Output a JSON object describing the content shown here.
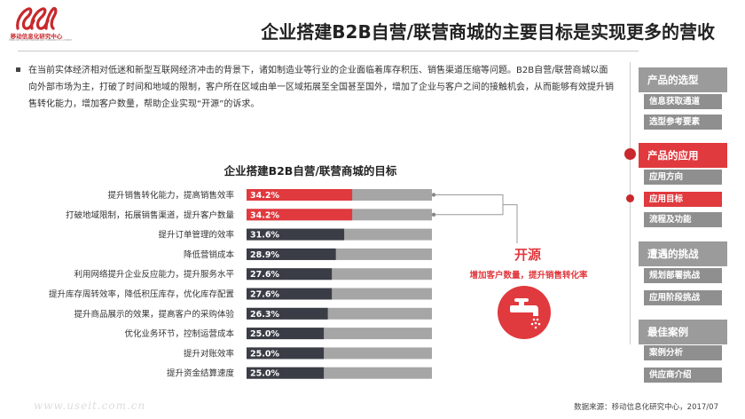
{
  "logo": {
    "cn": "移动信息化研究中心",
    "en": "Mobile Informatization Research Center"
  },
  "page_title": "企业搭建B2B自营/联营商城的主要目标是实现更多的营收",
  "intro": "在当前实体经济相对低迷和新型互联网经济冲击的背景下，诸如制造业等行业的企业面临着库存积压、销售渠道压缩等问题。B2B自营/联营商城以面向外部市场为主，打破了时间和地域的限制，客户所在区域由单一区域拓展至全国甚至国外，增加了企业与客户之间的接触机会，从而能够有效提升销售转化能力，增加客户数量，帮助企业实现“开源”的诉求。",
  "colors": {
    "accent": "#e0393e",
    "dark_bar": "#3a3d45",
    "track": "#a6a6a6"
  },
  "chart_data": {
    "type": "bar",
    "orientation": "horizontal",
    "title": "企业搭建B2B自营/联营商城的目标",
    "categories": [
      "提升销售转化能力，提高销售效率",
      "打破地域限制，拓展销售渠道，提升客户数量",
      "提升订单管理的效率",
      "降低营销成本",
      "利用网络提升企业反应能力，提升服务水平",
      "提升库存周转效率，降低积压库存，优化库存配置",
      "提升商品展示的效果，提高客户的采购体验",
      "优化业务环节，控制运营成本",
      "提升对账效率",
      "提升资金结算速度"
    ],
    "values": [
      34.2,
      34.2,
      31.6,
      28.9,
      27.6,
      27.6,
      26.3,
      25.0,
      25.0,
      25.0
    ],
    "labels": [
      "34.2%",
      "34.2%",
      "31.6%",
      "28.9%",
      "27.6%",
      "27.6%",
      "26.3%",
      "25.0%",
      "25.0%",
      "25.0%"
    ],
    "highlighted": [
      true,
      true,
      false,
      false,
      false,
      false,
      false,
      false,
      false,
      false
    ],
    "xlim": [
      0,
      60
    ],
    "unit": "%"
  },
  "annotation": {
    "title": "开源",
    "subtitle": "增加客户数量，提升销售转化率",
    "icon": "water-tap-icon"
  },
  "sidebar": {
    "sections": [
      {
        "label": "产品的选型",
        "active": false,
        "items": [
          {
            "label": "信息获取通道",
            "active": false
          },
          {
            "label": "选型参考要素",
            "active": false
          }
        ]
      },
      {
        "label": "产品的应用",
        "active": true,
        "items": [
          {
            "label": "应用方向",
            "active": false
          },
          {
            "label": "应用目标",
            "active": true
          },
          {
            "label": "流程及功能",
            "active": false
          }
        ]
      },
      {
        "label": "遭遇的挑战",
        "active": false,
        "items": [
          {
            "label": "规划部署挑战",
            "active": false
          },
          {
            "label": "应用阶段挑战",
            "active": false
          }
        ]
      },
      {
        "label": "最佳案例",
        "active": false,
        "items": [
          {
            "label": "案例分析",
            "active": false
          },
          {
            "label": "供应商介绍",
            "active": false
          }
        ]
      }
    ]
  },
  "source": "数据来源：移动信息化研究中心，2017/07",
  "watermark": "www.useit.com.cn"
}
